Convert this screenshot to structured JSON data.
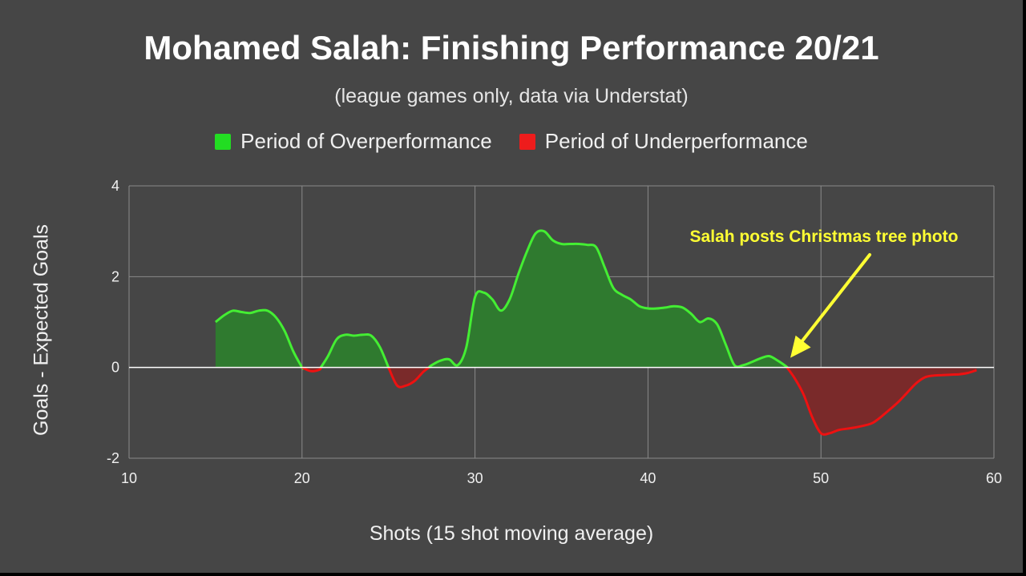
{
  "chart_data": {
    "type": "area",
    "title": "Mohamed Salah: Finishing Performance 20/21",
    "subtitle": "(league games only, data via Understat)",
    "xlabel": "Shots (15 shot moving average)",
    "ylabel": "Goals -  Expected Goals",
    "xlim": [
      10,
      60
    ],
    "ylim": [
      -2,
      4
    ],
    "x_ticks": [
      10,
      20,
      30,
      40,
      50,
      60
    ],
    "y_ticks": [
      -2,
      0,
      2,
      4
    ],
    "grid": true,
    "legend_position": "top-center",
    "legend": [
      {
        "label": "Period of Overperformance",
        "color": "#22dd22"
      },
      {
        "label": "Period of Underperformance",
        "color": "#ee1c1c"
      }
    ],
    "colors": {
      "over_line": "#44ee33",
      "over_fill": "#2f7a2f",
      "under_line": "#ee1111",
      "under_fill": "#7a2a2a",
      "zero_line": "#ffffff",
      "grid": "#8a8a8a",
      "annotation": "#ffff33"
    },
    "series": [
      {
        "x": [
          15,
          15.5,
          16,
          16.5,
          17,
          17.5,
          18,
          18.5,
          19,
          19.5,
          20,
          20.5,
          21,
          21.5,
          22,
          22.5,
          23,
          23.5,
          24,
          24.5,
          25,
          25.5,
          26,
          26.5,
          27,
          27.5,
          28,
          28.5,
          29,
          29.5,
          30,
          30.5,
          31,
          31.5,
          32,
          32.5,
          33,
          33.5,
          34,
          34.5,
          35,
          35.5,
          36,
          36.5,
          37,
          37.5,
          38,
          38.5,
          39,
          39.5,
          40,
          40.5,
          41,
          41.5,
          42,
          42.5,
          43,
          43.5,
          44,
          44.5,
          45,
          45.5,
          46,
          46.5,
          47,
          47.5,
          48,
          48.5,
          49,
          49.5,
          50,
          50.5,
          51,
          51.5,
          52,
          52.5,
          53,
          53.5,
          54,
          54.5,
          55,
          55.5,
          56,
          56.5,
          57,
          57.5,
          58,
          58.5,
          59
        ],
        "y": [
          1.0,
          1.15,
          1.25,
          1.22,
          1.2,
          1.25,
          1.25,
          1.1,
          0.8,
          0.35,
          0.0,
          -0.08,
          -0.05,
          0.25,
          0.62,
          0.72,
          0.7,
          0.72,
          0.7,
          0.45,
          0.0,
          -0.4,
          -0.4,
          -0.3,
          -0.1,
          0.05,
          0.15,
          0.18,
          0.05,
          0.45,
          1.55,
          1.65,
          1.5,
          1.25,
          1.5,
          2.05,
          2.55,
          2.95,
          3.0,
          2.8,
          2.72,
          2.72,
          2.72,
          2.7,
          2.65,
          2.2,
          1.75,
          1.6,
          1.5,
          1.35,
          1.3,
          1.3,
          1.32,
          1.35,
          1.32,
          1.18,
          1.0,
          1.08,
          0.95,
          0.5,
          0.05,
          0.05,
          0.12,
          0.2,
          0.25,
          0.15,
          0.02,
          -0.25,
          -0.6,
          -1.1,
          -1.45,
          -1.45,
          -1.38,
          -1.35,
          -1.32,
          -1.28,
          -1.22,
          -1.08,
          -0.92,
          -0.75,
          -0.55,
          -0.35,
          -0.22,
          -0.18,
          -0.17,
          -0.16,
          -0.15,
          -0.12,
          -0.06
        ]
      }
    ],
    "annotations": [
      {
        "text": "Salah posts Christmas tree photo",
        "x": 48,
        "y": 0
      }
    ]
  }
}
